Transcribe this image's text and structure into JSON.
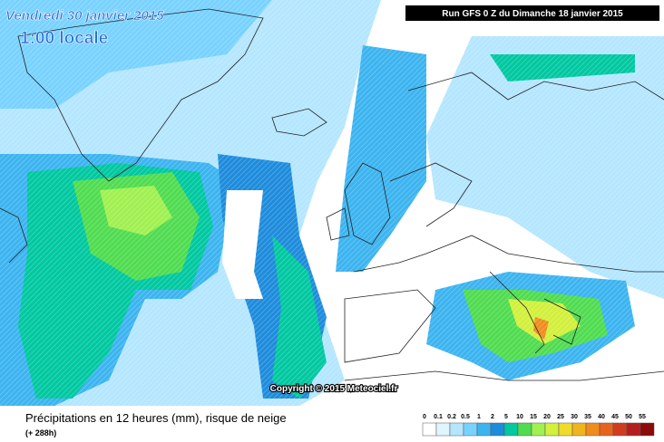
{
  "header": {
    "date": "Vendredi 30 janvier 2015",
    "time": "1:00 locale",
    "run": "Run GFS 0 Z du Dimanche 18 janvier 2015"
  },
  "copyright": "Copyright © 2015 Meteociel.fr",
  "footer": {
    "title": "Précipitations en 12 heures (mm), risque de neige",
    "lead": "(+ 288h)"
  },
  "legend": {
    "labels": [
      "0",
      "0.1",
      "0.2",
      "0.5",
      "1",
      "2",
      "5",
      "10",
      "15",
      "20",
      "25",
      "30",
      "35",
      "40",
      "45",
      "50",
      "55"
    ],
    "colors": [
      "#ffffff",
      "#e1f5ff",
      "#b4e6ff",
      "#78d2ff",
      "#3cb4f0",
      "#1e8cdc",
      "#00c8a0",
      "#50dc50",
      "#a0f050",
      "#d2f03c",
      "#f0dc28",
      "#f0b41e",
      "#f08c1e",
      "#e6641e",
      "#d23c1e",
      "#b41e1e",
      "#8c0a0a"
    ]
  }
}
